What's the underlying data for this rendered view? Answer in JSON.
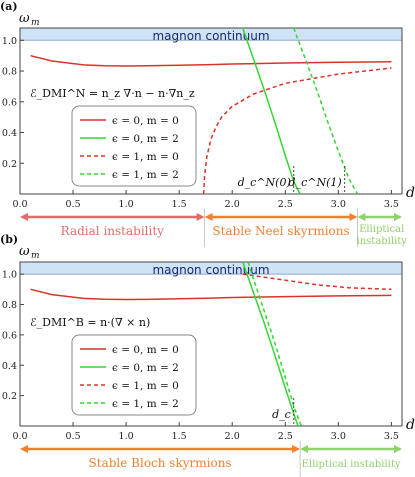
{
  "colors": {
    "red": "#d9342b",
    "green": "#33d633",
    "band": "#cfe3f6",
    "band_edge": "#8fa9c6",
    "band_text": "#1a2a6c",
    "radial": "#de6d6a",
    "neel": "#f2802f",
    "ellip": "#8fd16a"
  },
  "chart_data": [
    {
      "panel": "(a)",
      "type": "line",
      "ylabel": "ω_m",
      "xlabel": "d",
      "xlim": [
        0,
        3.6
      ],
      "ylim": [
        0,
        1.08
      ],
      "xticks": [
        "0.0",
        "0.5",
        "1.0",
        "1.5",
        "2.0",
        "2.5",
        "3.0",
        "3.5"
      ],
      "yticks": [
        "0.2",
        "0.4",
        "0.6",
        "0.8",
        "1.0"
      ],
      "band_label": "magnon continuum",
      "formula": "ℰ_DMI^N = n_z ∇·n − n·∇n_z",
      "legend": [
        "ϵ = 0, m = 0",
        "ϵ = 0, m = 2",
        "ϵ = 1, m = 0",
        "ϵ = 1, m = 2"
      ],
      "annotations": [
        {
          "text": "d_c^N(0)",
          "x": 2.58
        },
        {
          "text": "d_c^N(1)",
          "x": 3.06
        }
      ],
      "series": [
        {
          "name": "ϵ = 0, m = 0",
          "style": "solid",
          "color": "red",
          "x": [
            0.1,
            0.3,
            0.6,
            0.8,
            1.0,
            1.2,
            1.5,
            1.8,
            2.0,
            2.5,
            3.0,
            3.5
          ],
          "y": [
            0.9,
            0.865,
            0.84,
            0.835,
            0.833,
            0.834,
            0.838,
            0.842,
            0.846,
            0.852,
            0.857,
            0.86
          ]
        },
        {
          "name": "ϵ = 0, m = 2",
          "style": "solid",
          "color": "green",
          "x": [
            2.1,
            2.15,
            2.2,
            2.3,
            2.4,
            2.5,
            2.58,
            2.64
          ],
          "y": [
            1.08,
            0.98,
            0.88,
            0.68,
            0.47,
            0.25,
            0.08,
            0.0
          ]
        },
        {
          "name": "ϵ = 1, m = 0",
          "style": "dashed",
          "color": "red",
          "x": [
            1.73,
            1.74,
            1.76,
            1.8,
            1.85,
            1.9,
            2.0,
            2.2,
            2.5,
            3.0,
            3.5
          ],
          "y": [
            0.0,
            0.12,
            0.24,
            0.36,
            0.44,
            0.5,
            0.57,
            0.65,
            0.72,
            0.78,
            0.82
          ]
        },
        {
          "name": "ϵ = 1, m = 2",
          "style": "dashed",
          "color": "green",
          "x": [
            2.58,
            2.6,
            2.7,
            2.8,
            2.9,
            3.0,
            3.1,
            3.18
          ],
          "y": [
            1.08,
            1.04,
            0.86,
            0.67,
            0.47,
            0.28,
            0.1,
            0.0
          ]
        }
      ],
      "regions": [
        {
          "label": "Radial instability",
          "from": 0,
          "to": 1.74,
          "color": "radial"
        },
        {
          "label": "Stable Neel skyrmions",
          "from": 1.74,
          "to": 3.18,
          "color": "neel"
        },
        {
          "label": "Elliptical instability",
          "from": 3.18,
          "to": 3.6,
          "color": "ellip"
        }
      ]
    },
    {
      "panel": "(b)",
      "type": "line",
      "ylabel": "ω_m",
      "xlabel": "d",
      "xlim": [
        0,
        3.6
      ],
      "ylim": [
        0,
        1.08
      ],
      "xticks": [
        "0.0",
        "0.5",
        "1.0",
        "1.5",
        "2.0",
        "2.5",
        "3.0",
        "3.5"
      ],
      "yticks": [
        "0.2",
        "0.4",
        "0.6",
        "0.8",
        "1.0"
      ],
      "band_label": "magnon continuum",
      "formula": "ℰ_DMI^B = n·(∇ × n)",
      "legend": [
        "ϵ = 0, m = 0",
        "ϵ = 0, m = 2",
        "ϵ = 1, m = 0",
        "ϵ = 1, m = 2"
      ],
      "annotations": [
        {
          "text": "d_c",
          "x": 2.58
        }
      ],
      "series": [
        {
          "name": "ϵ = 0, m = 0",
          "style": "solid",
          "color": "red",
          "x": [
            0.1,
            0.3,
            0.6,
            0.8,
            1.0,
            1.2,
            1.5,
            1.8,
            2.0,
            2.5,
            3.0,
            3.5
          ],
          "y": [
            0.9,
            0.865,
            0.84,
            0.835,
            0.833,
            0.834,
            0.838,
            0.842,
            0.846,
            0.852,
            0.857,
            0.86
          ]
        },
        {
          "name": "ϵ = 0, m = 2",
          "style": "solid",
          "color": "green",
          "x": [
            2.1,
            2.15,
            2.2,
            2.3,
            2.4,
            2.5,
            2.58,
            2.62
          ],
          "y": [
            1.08,
            0.98,
            0.88,
            0.68,
            0.47,
            0.25,
            0.08,
            0.0
          ]
        },
        {
          "name": "ϵ = 1, m = 0",
          "style": "dashed",
          "color": "red",
          "x": [
            2.1,
            2.3,
            2.5,
            2.8,
            3.1,
            3.5
          ],
          "y": [
            1.0,
            0.98,
            0.96,
            0.93,
            0.91,
            0.9
          ]
        },
        {
          "name": "ϵ = 1, m = 2",
          "style": "dashed",
          "color": "green",
          "x": [
            2.15,
            2.2,
            2.3,
            2.4,
            2.5,
            2.58,
            2.65
          ],
          "y": [
            1.08,
            0.97,
            0.76,
            0.55,
            0.32,
            0.13,
            0.0
          ]
        }
      ],
      "regions": [
        {
          "label": "Stable Bloch skyrmions",
          "from": 0,
          "to": 2.64,
          "color": "neel"
        },
        {
          "label": "Elliptical instability",
          "from": 2.64,
          "to": 3.6,
          "color": "ellip"
        }
      ]
    }
  ]
}
